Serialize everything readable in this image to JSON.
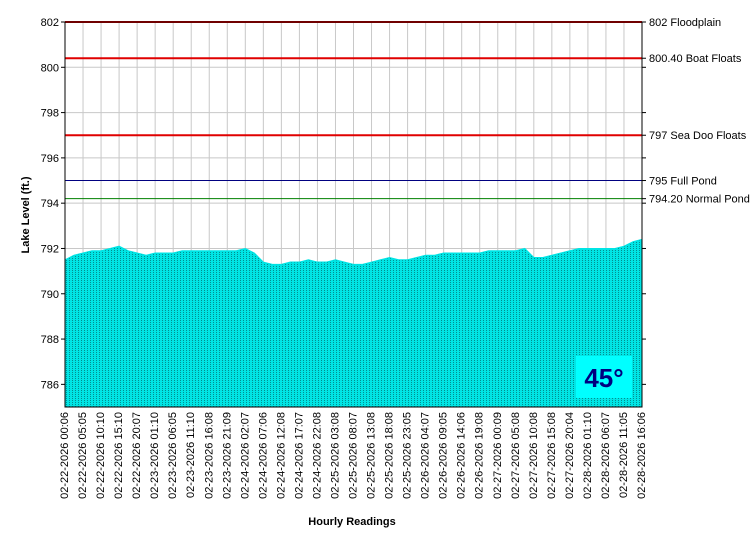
{
  "chart_data": {
    "type": "area",
    "y_label": "Lake Level (ft.)",
    "x_label": "Hourly Readings",
    "badge": "45°",
    "color": "#00e5e5",
    "grid": true,
    "ylim": [
      785,
      802
    ],
    "yticks": [
      786,
      788,
      790,
      792,
      794,
      796,
      798,
      800,
      802
    ],
    "reference_lines": [
      {
        "value": 802,
        "label": "802 Floodplain",
        "color": "#e00000"
      },
      {
        "value": 800.4,
        "label": "800.40 Boat Floats",
        "color": "#e00000"
      },
      {
        "value": 797,
        "label": "797 Sea Doo Floats",
        "color": "#e00000"
      },
      {
        "value": 795,
        "label": "795 Full Pond",
        "color": "#000080"
      },
      {
        "value": 794.2,
        "label": "794.20 Normal Pond",
        "color": "#008000"
      }
    ],
    "categories": [
      "02-22-2026 00:06",
      null,
      "02-22-2026 05:05",
      null,
      "02-22-2026 10:10",
      null,
      "02-22-2026 15:10",
      null,
      "02-22-2026 20:07",
      null,
      "02-23-2026 01:10",
      null,
      "02-23-2026 06:05",
      null,
      "02-23-2026 11:10",
      null,
      "02-23-2026 16:08",
      null,
      "02-23-2026 21:09",
      null,
      "02-24-2026 02:07",
      null,
      "02-24-2026 07:06",
      null,
      "02-24-2026 12:08",
      null,
      "02-24-2026 17:07",
      null,
      "02-24-2026 22:08",
      null,
      "02-25-2026 03:08",
      null,
      "02-25-2026 08:07",
      null,
      "02-25-2026 13:08",
      null,
      "02-25-2026 18:08",
      null,
      "02-25-2026 23:05",
      null,
      "02-26-2026 04:07",
      null,
      "02-26-2026 09:05",
      null,
      "02-26-2026 14:06",
      null,
      "02-26-2026 19:08",
      null,
      "02-27-2026 00:09",
      null,
      "02-27-2026 05:08",
      null,
      "02-27-2026 10:08",
      null,
      "02-27-2026 15:08",
      null,
      "02-27-2026 20:04",
      null,
      "02-28-2026 01:10",
      null,
      "02-28-2026 06:07",
      null,
      "02-28-2026 11:05",
      null,
      "02-28-2026 16:06"
    ],
    "values": [
      791.5,
      791.7,
      791.8,
      791.9,
      791.9,
      792.0,
      792.1,
      791.9,
      791.8,
      791.7,
      791.8,
      791.8,
      791.8,
      791.9,
      791.9,
      791.9,
      791.9,
      791.9,
      791.9,
      791.9,
      792.0,
      791.8,
      791.4,
      791.3,
      791.3,
      791.4,
      791.4,
      791.5,
      791.4,
      791.4,
      791.5,
      791.4,
      791.3,
      791.3,
      791.4,
      791.5,
      791.6,
      791.5,
      791.5,
      791.6,
      791.7,
      791.7,
      791.8,
      791.8,
      791.8,
      791.8,
      791.8,
      791.9,
      791.9,
      791.9,
      791.9,
      792.0,
      791.6,
      791.6,
      791.7,
      791.8,
      791.9,
      792.0,
      792.0,
      792.0,
      792.0,
      792.0,
      792.1,
      792.3,
      792.4
    ]
  }
}
